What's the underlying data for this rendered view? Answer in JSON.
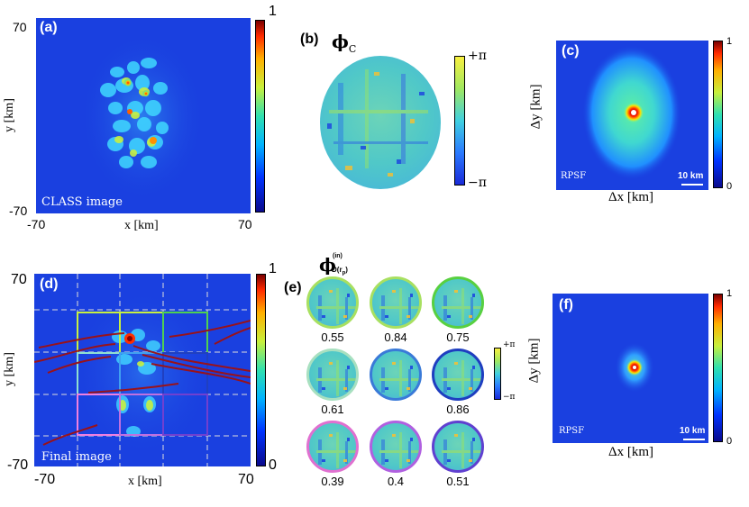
{
  "panels": {
    "a": {
      "label": "(a)",
      "caption": "CLASS image",
      "y_top": "70",
      "y_bottom": "-70",
      "x_left": "-70",
      "x_right": "70",
      "xlabel": "x [km]",
      "ylabel": "y [km]",
      "cbar_max": "1"
    },
    "b": {
      "label": "(b)",
      "phi": "ϕ",
      "phi_sub": "C",
      "cbar_top": "+π",
      "cbar_bottom": "−π"
    },
    "c": {
      "label": "(c)",
      "inset": "RPSF",
      "scale": "10 km",
      "xlabel": "Δx [km]",
      "ylabel": "Δy [km]",
      "cbar_max": "1",
      "cbar_min": "0"
    },
    "d": {
      "label": "(d)",
      "caption": "Final image",
      "y_top": "70",
      "y_bottom": "-70",
      "x_left": "-70",
      "x_right": "70",
      "xlabel": "x [km]",
      "ylabel": "y [km]",
      "cbar_max": "1",
      "cbar_min": "0"
    },
    "e": {
      "label": "(e)",
      "phi": "ϕ",
      "phi_sup": "(in)",
      "phi_sub": "D(r",
      "phi_subsub": "p",
      "phi_close": ")",
      "cbar_top": "+π",
      "cbar_bottom": "−π",
      "values": [
        "0.55",
        "0.84",
        "0.75",
        "0.61",
        "",
        "0.86",
        "0.39",
        "0.4",
        "0.51"
      ],
      "ring_colors": [
        "#a8e060",
        "#a8e060",
        "#58d040",
        "#a8e0c0",
        "#3a7ad8",
        "#1f3ec0",
        "#e070d0",
        "#b060e0",
        "#6040d0"
      ]
    },
    "f": {
      "label": "(f)",
      "inset": "RPSF",
      "scale": "10 km",
      "xlabel": "Δx [km]",
      "ylabel": "Δy [km]",
      "cbar_max": "1",
      "cbar_min": "0"
    }
  },
  "colors": {
    "background_blue": "#1a44e0",
    "hot_red": "#ff2000",
    "grid_dashed": "#dddddd",
    "fault_red": "#a01010"
  }
}
